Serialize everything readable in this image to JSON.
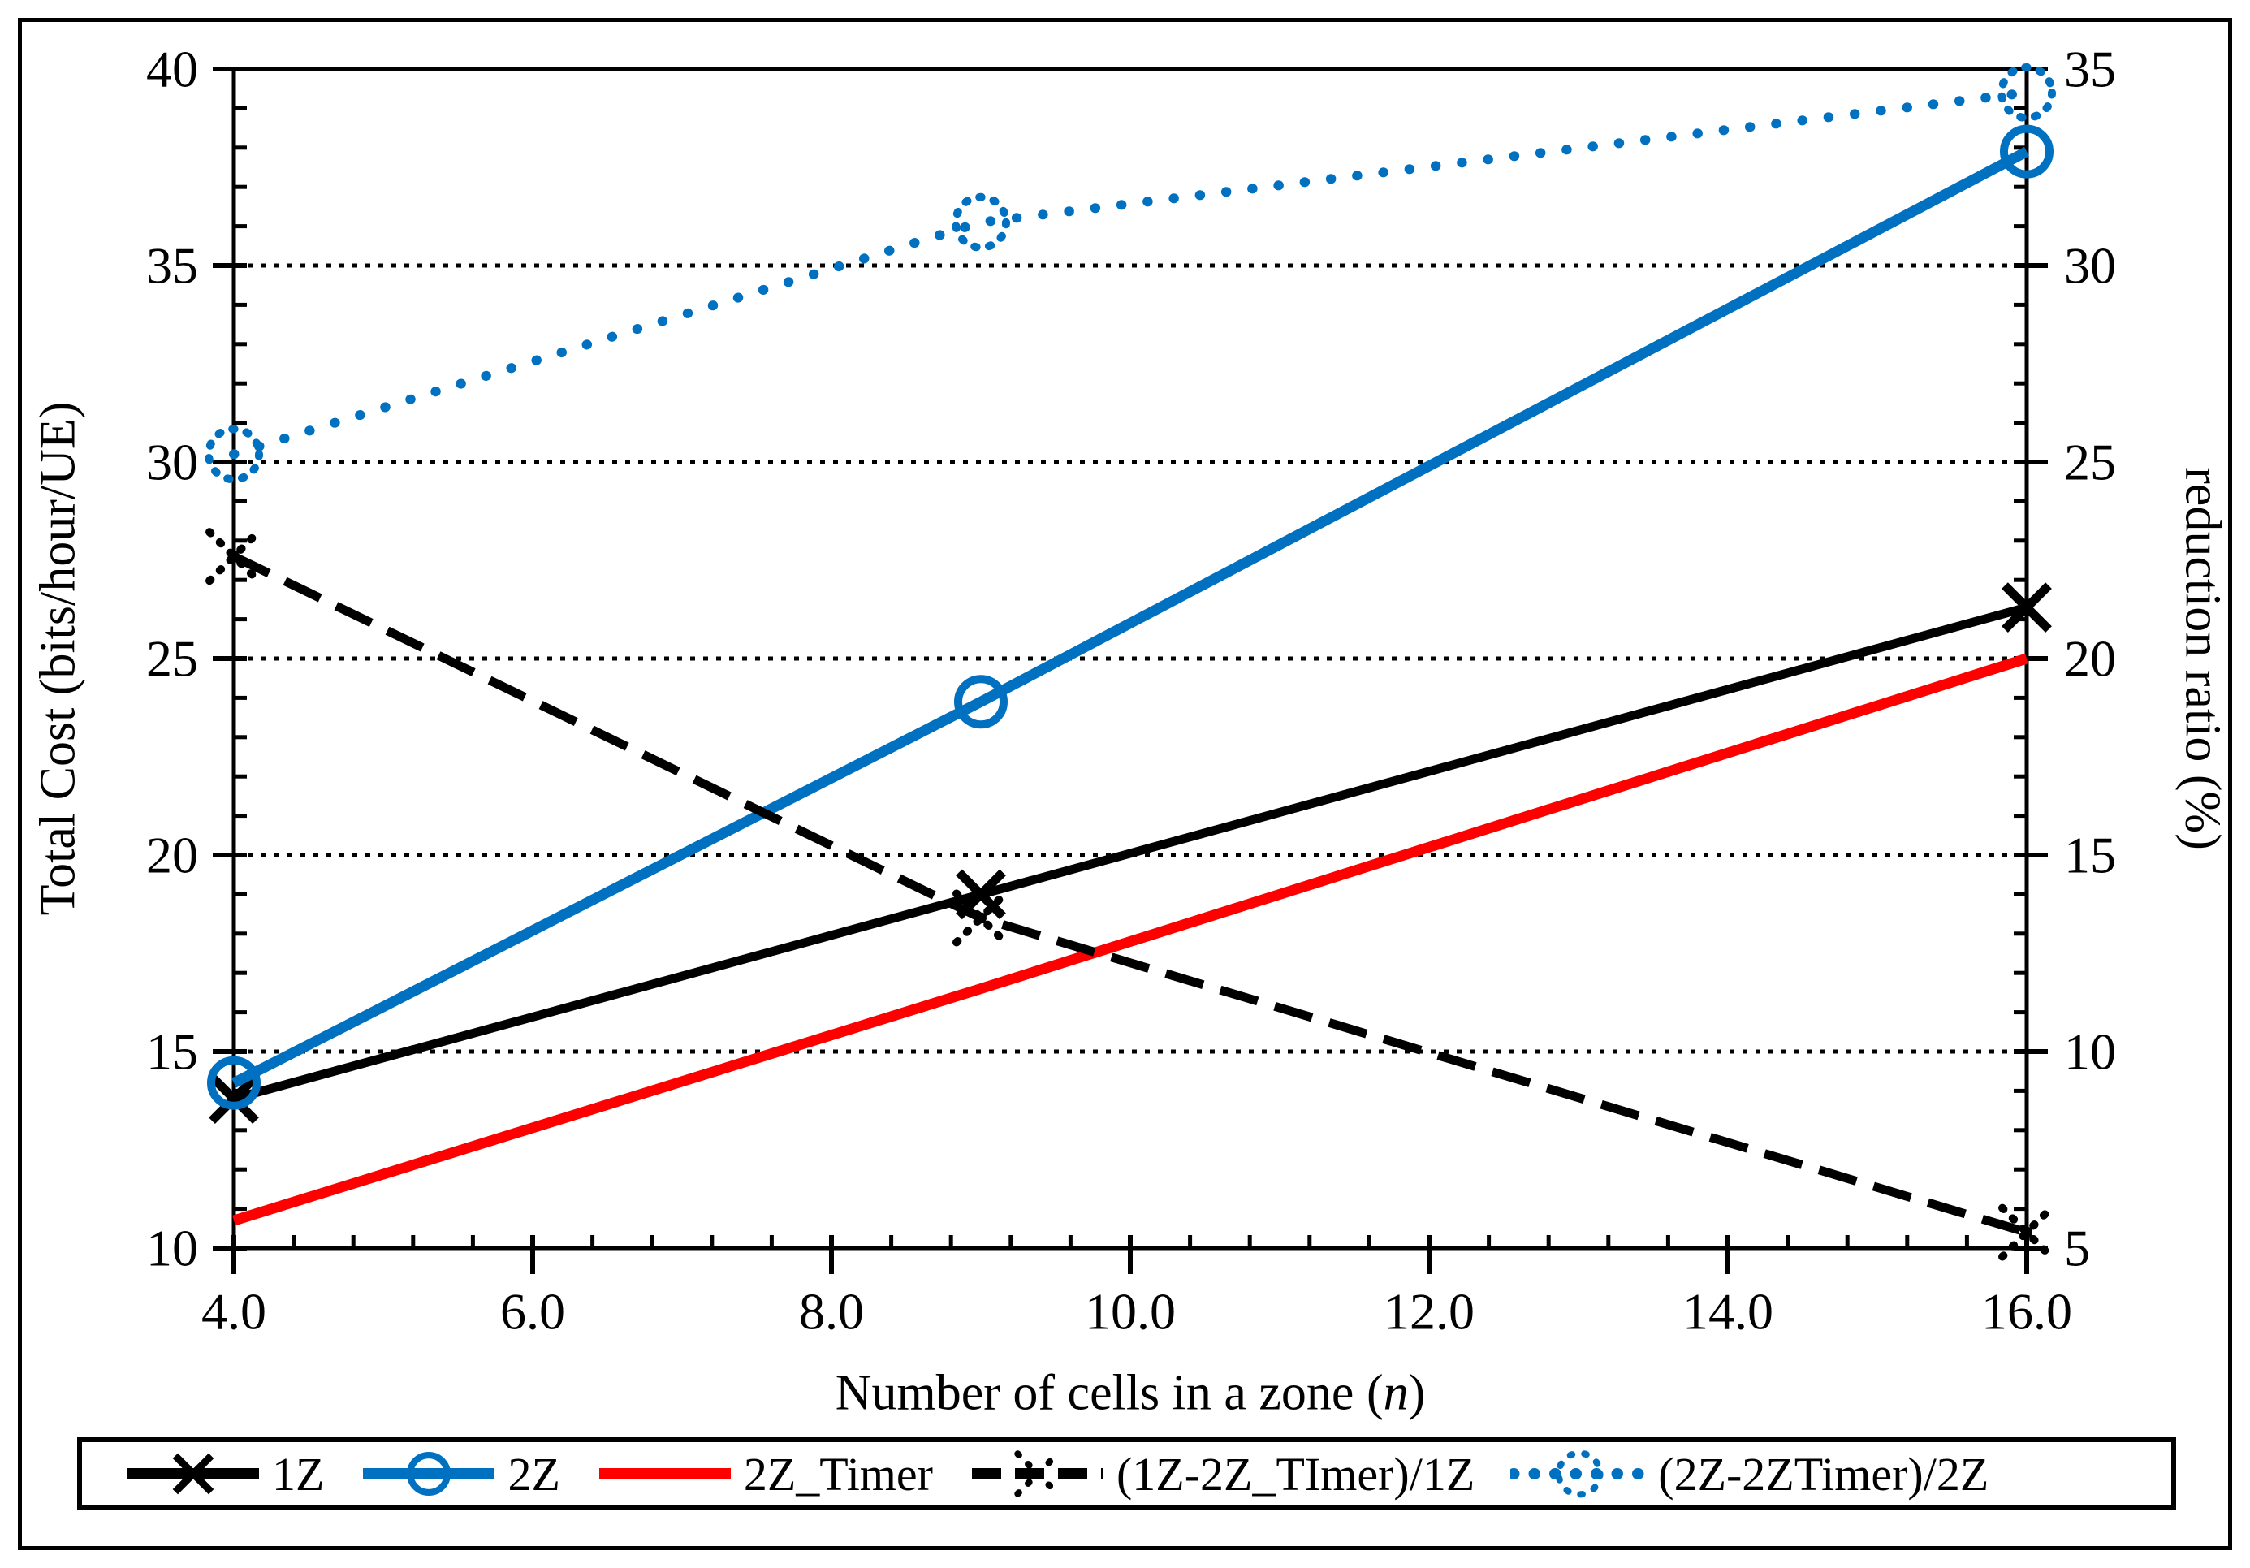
{
  "figure": {
    "background": "#ffffff",
    "border_color": "#000000"
  },
  "chart_data": {
    "type": "line",
    "title": "",
    "xlabel_prefix": "Number of cells in a zone (",
    "xlabel_italic": "n",
    "xlabel_suffix": ")",
    "ylabel_left": "Total Cost (bits/hour/UE)",
    "ylabel_right": "reduction ratio (%)",
    "x": [
      4,
      9,
      16
    ],
    "x_axis": {
      "min": 4,
      "max": 16,
      "major_step": 2,
      "minor_step": 0.4,
      "tick_labels": [
        "4.0",
        "6.0",
        "8.0",
        "10.0",
        "12.0",
        "14.0",
        "16.0"
      ]
    },
    "y_left": {
      "min": 10,
      "max": 40,
      "major_step": 5,
      "minor_step": 1,
      "tick_labels": [
        "10",
        "15",
        "20",
        "25",
        "30",
        "35",
        "40"
      ]
    },
    "y_right": {
      "min": 5,
      "max": 35,
      "major_step": 5,
      "minor_step": 1,
      "tick_labels": [
        "5",
        "10",
        "15",
        "20",
        "25",
        "30",
        "35"
      ]
    },
    "gridlines_left_values": [
      15,
      20,
      25,
      30,
      35
    ],
    "grid": "horizontal-dotted",
    "legend_position": "bottom",
    "colors": {
      "black": "#000000",
      "blue": "#0070C0",
      "red": "#FF0000"
    },
    "series": [
      {
        "name": "1Z",
        "axis": "left",
        "color": "#000000",
        "style": "solid",
        "marker": "x",
        "values": [
          13.8,
          19.0,
          26.3
        ]
      },
      {
        "name": "2Z",
        "axis": "left",
        "color": "#0070C0",
        "style": "solid",
        "marker": "circle",
        "values": [
          14.2,
          23.9,
          37.9
        ]
      },
      {
        "name": "2Z_Timer",
        "axis": "left",
        "color": "#FF0000",
        "style": "solid",
        "marker": "none",
        "values": [
          10.7,
          16.6,
          25.0
        ]
      },
      {
        "name": "(1Z-2Z_TImer)/1Z",
        "axis": "right",
        "color": "#000000",
        "style": "dashed",
        "marker": "dotted-x",
        "values": [
          22.6,
          13.4,
          5.4
        ]
      },
      {
        "name": "(2Z-2ZTimer)/2Z",
        "axis": "right",
        "color": "#0070C0",
        "style": "dotted",
        "marker": "dotted-circle",
        "values": [
          25.2,
          31.1,
          34.4
        ]
      }
    ]
  }
}
